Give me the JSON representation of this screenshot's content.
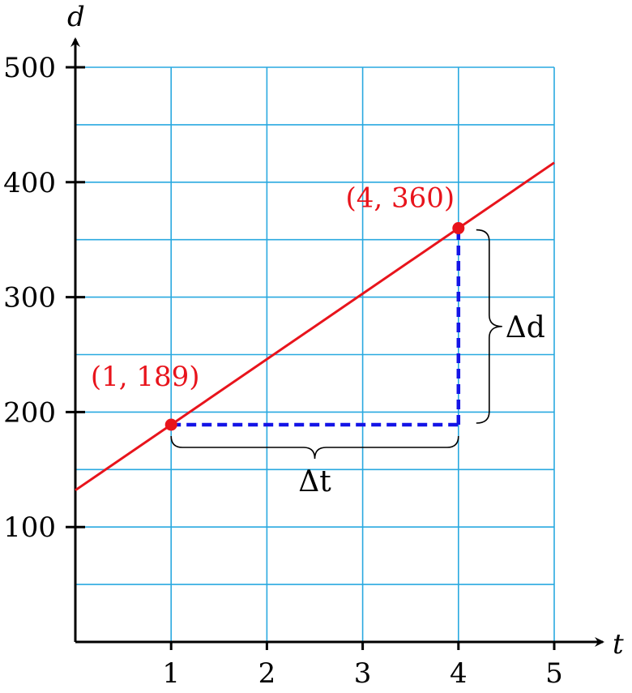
{
  "chart_data": {
    "type": "line",
    "xlabel": "t",
    "ylabel": "d",
    "xlim": [
      0,
      5
    ],
    "ylim": [
      0,
      500
    ],
    "x_ticks": [
      1,
      2,
      3,
      4,
      5
    ],
    "x_tick_labels": [
      "1",
      "2",
      "3",
      "4",
      "5"
    ],
    "y_ticks": [
      100,
      200,
      300,
      400,
      500
    ],
    "y_tick_labels": [
      "100",
      "200",
      "300",
      "400",
      "500"
    ],
    "grid": true,
    "grid_minor_y_step": 50,
    "series": [
      {
        "x": [
          0,
          5
        ],
        "y": [
          132,
          417
        ]
      }
    ],
    "points": [
      {
        "x": 1,
        "y": 189,
        "label": "(1, 189)"
      },
      {
        "x": 4,
        "y": 360,
        "label": "(4, 360)"
      }
    ],
    "annotations": {
      "delta_t": "Δt",
      "delta_d": "Δd"
    }
  },
  "colors": {
    "line": "#e8141c",
    "grid": "#29a9e0",
    "dashed": "#1414e6",
    "axis": "#000000"
  }
}
